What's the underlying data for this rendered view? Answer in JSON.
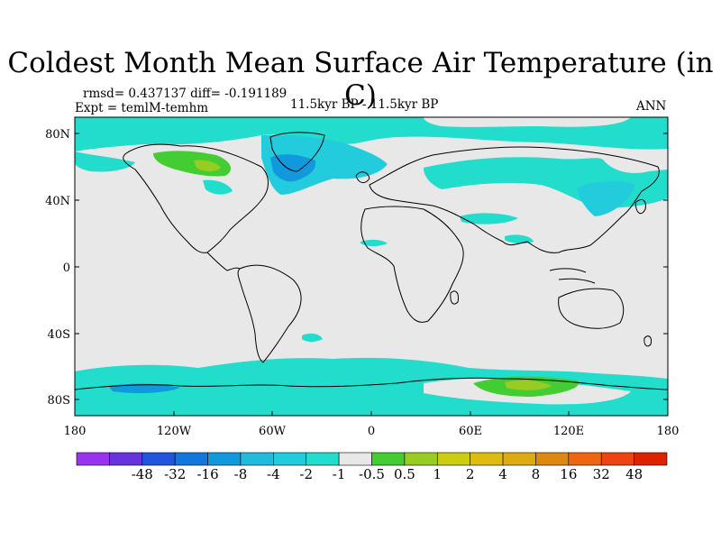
{
  "title": "Coldest Month Mean Surface Air Temperature (in C)",
  "stats": {
    "rmsd_diff": "rmsd= 0.437137 diff= -0.191189",
    "expt": "Expt = temlM-temhm",
    "period": "11.5kyr BP - 11.5kyr BP",
    "season": "ANN"
  },
  "axes": {
    "y_ticks": [
      "80N",
      "40N",
      "0",
      "40S",
      "80S"
    ],
    "x_ticks": [
      "180",
      "120W",
      "60W",
      "0",
      "60E",
      "120E",
      "180"
    ]
  },
  "colorbar": {
    "colors": [
      "#9933ee",
      "#6633dd",
      "#2255dd",
      "#1177dd",
      "#1199dd",
      "#22bbdd",
      "#22ccdd",
      "#22ddcc",
      "#e8e8e8",
      "#44cc33",
      "#99cc22",
      "#cccc11",
      "#ddbb11",
      "#ddaa11",
      "#dd8811",
      "#ee6611",
      "#ee4411",
      "#dd2200"
    ],
    "labels": [
      "-48",
      "-32",
      "-16",
      "-8",
      "-4",
      "-2",
      "-1",
      "-0.5",
      "0.5",
      "1",
      "2",
      "4",
      "8",
      "16",
      "32",
      "48"
    ]
  },
  "colors": {
    "ocean_land": "#e8e8e8",
    "light_cyan": "#22ddcc",
    "cyan": "#22ccdd",
    "blue": "#1199dd",
    "green": "#44cc33",
    "yellow_green": "#99cc22"
  }
}
